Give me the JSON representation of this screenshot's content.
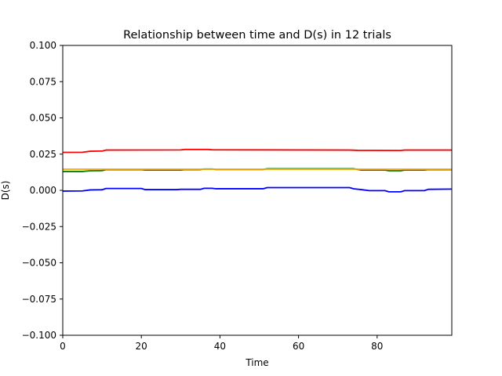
{
  "chart_data": {
    "type": "line",
    "title": "Relationship between time and D(s) in 12 trials",
    "xlabel": "Time",
    "ylabel": "D(s)",
    "xlim": [
      0,
      99
    ],
    "ylim": [
      -0.1,
      0.1
    ],
    "xticks": [
      0,
      20,
      40,
      60,
      80
    ],
    "xtick_labels": [
      "0",
      "20",
      "40",
      "60",
      "80"
    ],
    "yticks": [
      -0.1,
      -0.075,
      -0.05,
      -0.025,
      0.0,
      0.025,
      0.05,
      0.075,
      0.1
    ],
    "ytick_labels": [
      "−0.100",
      "−0.075",
      "−0.050",
      "−0.025",
      "0.000",
      "0.025",
      "0.050",
      "0.075",
      "0.100"
    ],
    "grid": false,
    "legend": "none",
    "series": [
      {
        "color": "#ff0000",
        "points": [
          [
            0,
            0.0262
          ],
          [
            5,
            0.0263
          ],
          [
            7,
            0.027
          ],
          [
            10,
            0.0271
          ],
          [
            11,
            0.0278
          ],
          [
            30,
            0.0279
          ],
          [
            31,
            0.0282
          ],
          [
            37,
            0.0282
          ],
          [
            38,
            0.028
          ],
          [
            73,
            0.0278
          ],
          [
            75,
            0.0276
          ],
          [
            86,
            0.0275
          ],
          [
            87,
            0.0278
          ],
          [
            99,
            0.0278
          ]
        ]
      },
      {
        "color": "#008000",
        "points": [
          [
            0,
            0.013
          ],
          [
            5,
            0.013
          ],
          [
            7,
            0.0135
          ],
          [
            10,
            0.0136
          ],
          [
            11,
            0.0143
          ],
          [
            20,
            0.0143
          ],
          [
            21,
            0.014
          ],
          [
            30,
            0.014
          ],
          [
            31,
            0.0143
          ],
          [
            35,
            0.0143
          ],
          [
            36,
            0.0147
          ],
          [
            38,
            0.0147
          ],
          [
            39,
            0.0144
          ],
          [
            51,
            0.0144
          ],
          [
            52,
            0.0149
          ],
          [
            74,
            0.0149
          ],
          [
            76,
            0.014
          ],
          [
            82,
            0.014
          ],
          [
            83,
            0.0135
          ],
          [
            86,
            0.0135
          ],
          [
            87,
            0.014
          ],
          [
            92,
            0.014
          ],
          [
            93,
            0.0143
          ],
          [
            99,
            0.0143
          ]
        ]
      },
      {
        "color": "#ffa500",
        "points": [
          [
            0,
            0.0146
          ],
          [
            99,
            0.0146
          ]
        ]
      },
      {
        "color": "#0000ff",
        "points": [
          [
            0,
            -0.0005
          ],
          [
            5,
            -0.0004
          ],
          [
            7,
            0.0003
          ],
          [
            10,
            0.0004
          ],
          [
            11,
            0.0013
          ],
          [
            20,
            0.0013
          ],
          [
            21,
            0.0005
          ],
          [
            29,
            0.0005
          ],
          [
            30,
            0.0007
          ],
          [
            35,
            0.0007
          ],
          [
            36,
            0.0014
          ],
          [
            38,
            0.0014
          ],
          [
            39,
            0.0011
          ],
          [
            51,
            0.0011
          ],
          [
            52,
            0.0019
          ],
          [
            73,
            0.0019
          ],
          [
            74,
            0.0011
          ],
          [
            76,
            0.0005
          ],
          [
            78,
            -0.0002
          ],
          [
            82,
            -0.0002
          ],
          [
            83,
            -0.001
          ],
          [
            86,
            -0.001
          ],
          [
            87,
            -0.0002
          ],
          [
            92,
            -0.0002
          ],
          [
            93,
            0.0007
          ],
          [
            99,
            0.0009
          ]
        ]
      }
    ]
  }
}
